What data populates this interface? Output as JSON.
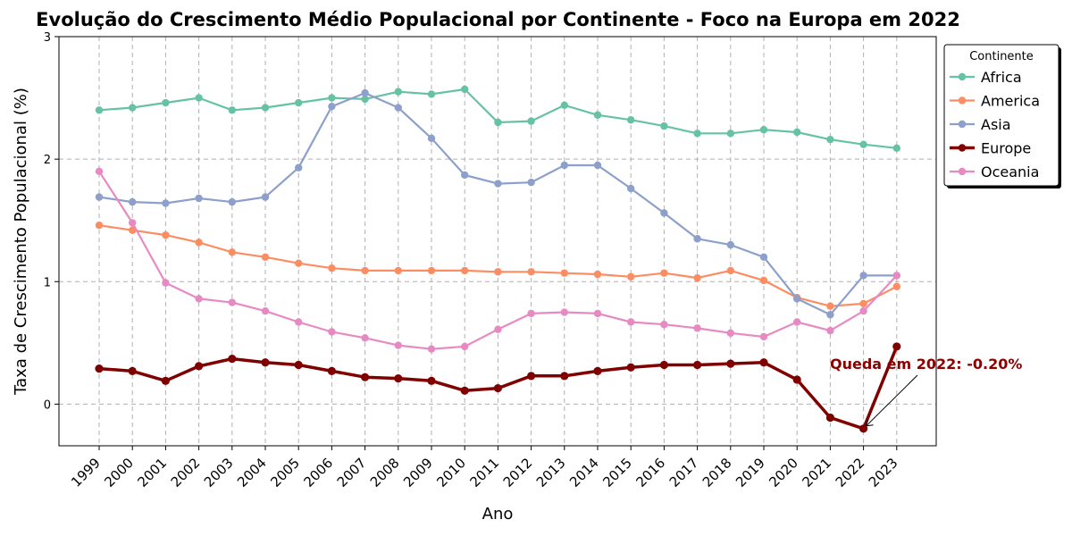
{
  "chart_data": {
    "type": "line",
    "title": "Evolução do Crescimento Médio Populacional por Continente - Foco na Europa em 2022",
    "xlabel": "Ano",
    "ylabel": "Taxa de Crescimento Populacional (%)",
    "ylim": [
      -0.34,
      3.0
    ],
    "yticks": [
      "0",
      "1",
      "2",
      "3"
    ],
    "grid": true,
    "legend_title": "Continente",
    "legend_position": "top-right outside",
    "x": [
      "1999",
      "2000",
      "2001",
      "2002",
      "2003",
      "2004",
      "2005",
      "2006",
      "2007",
      "2008",
      "2009",
      "2010",
      "2011",
      "2012",
      "2013",
      "2014",
      "2015",
      "2016",
      "2017",
      "2018",
      "2019",
      "2020",
      "2021",
      "2022",
      "2023"
    ],
    "series": [
      {
        "name": "Africa",
        "color": "#66c2a5",
        "values": [
          2.4,
          2.42,
          2.46,
          2.5,
          2.4,
          2.42,
          2.46,
          2.5,
          2.49,
          2.55,
          2.53,
          2.57,
          2.3,
          2.31,
          2.44,
          2.36,
          2.32,
          2.27,
          2.21,
          2.21,
          2.24,
          2.22,
          2.16,
          2.12,
          2.09
        ]
      },
      {
        "name": "America",
        "color": "#fc8d62",
        "values": [
          1.46,
          1.42,
          1.38,
          1.32,
          1.24,
          1.2,
          1.15,
          1.11,
          1.09,
          1.09,
          1.09,
          1.09,
          1.08,
          1.08,
          1.07,
          1.06,
          1.04,
          1.07,
          1.03,
          1.09,
          1.01,
          0.87,
          0.8,
          0.82,
          0.96
        ]
      },
      {
        "name": "Asia",
        "color": "#8da0cb",
        "values": [
          1.69,
          1.65,
          1.64,
          1.68,
          1.65,
          1.69,
          1.93,
          2.43,
          2.54,
          2.42,
          2.17,
          1.87,
          1.8,
          1.81,
          1.95,
          1.95,
          1.76,
          1.56,
          1.35,
          1.3,
          1.2,
          0.86,
          0.73,
          1.05,
          1.05
        ]
      },
      {
        "name": "Europe",
        "color": "#800000",
        "values": [
          0.29,
          0.27,
          0.19,
          0.31,
          0.37,
          0.34,
          0.32,
          0.27,
          0.22,
          0.21,
          0.19,
          0.11,
          0.13,
          0.23,
          0.23,
          0.27,
          0.3,
          0.32,
          0.32,
          0.33,
          0.34,
          0.2,
          -0.11,
          -0.2,
          0.47
        ],
        "highlight": true
      },
      {
        "name": "Oceania",
        "color": "#e78ac3",
        "values": [
          1.9,
          1.48,
          0.99,
          0.86,
          0.83,
          0.76,
          0.67,
          0.59,
          0.54,
          0.48,
          0.45,
          0.47,
          0.61,
          0.74,
          0.75,
          0.74,
          0.67,
          0.65,
          0.62,
          0.58,
          0.55,
          0.67,
          0.6,
          0.76,
          1.05
        ]
      }
    ],
    "annotation": {
      "text": "Queda em 2022: -0.20%",
      "x": "2022",
      "y": -0.2,
      "color": "#8b0000"
    }
  }
}
